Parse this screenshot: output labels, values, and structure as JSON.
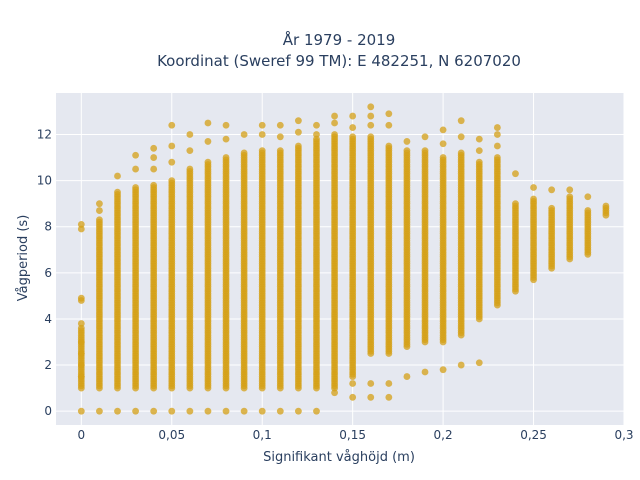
{
  "chart_data": {
    "type": "scatter",
    "title_line1": "År 1979 - 2019",
    "title_line2": "Koordinat (Sweref 99 TM): E 482251, N 6207020",
    "xlabel": "Signifikant våghöjd (m)",
    "ylabel": "Vågperiod (s)",
    "xlim": [
      -0.014,
      0.3
    ],
    "ylim": [
      -0.6,
      13.8
    ],
    "x_ticks": [
      0,
      0.05,
      0.1,
      0.15,
      0.2,
      0.25,
      0.3
    ],
    "x_tick_labels": [
      "0",
      "0,05",
      "0,1",
      "0,15",
      "0,2",
      "0,25",
      "0,3"
    ],
    "y_ticks": [
      0,
      2,
      4,
      6,
      8,
      10,
      12
    ],
    "y_tick_labels": [
      "0",
      "2",
      "4",
      "6",
      "8",
      "10",
      "12"
    ],
    "grid": true,
    "plot_bgcolor": "#e5e8f0",
    "marker_color": "#d4a017",
    "columns": [
      {
        "x": 0.0,
        "dense": [
          1.0,
          3.5
        ],
        "extra": [
          0,
          1.5,
          2.0,
          2.5,
          3.0,
          3.6,
          3.8,
          4.8,
          4.9,
          7.9,
          8.1
        ]
      },
      {
        "x": 0.01,
        "dense": [
          1.0,
          8.3
        ],
        "extra": [
          0,
          8.7,
          9.0
        ]
      },
      {
        "x": 0.02,
        "dense": [
          1.0,
          9.5
        ],
        "extra": [
          0,
          10.2
        ]
      },
      {
        "x": 0.03,
        "dense": [
          1.0,
          9.7
        ],
        "extra": [
          0,
          10.5,
          11.1
        ]
      },
      {
        "x": 0.04,
        "dense": [
          1.0,
          9.8
        ],
        "extra": [
          0,
          10.5,
          11.0,
          11.4
        ]
      },
      {
        "x": 0.05,
        "dense": [
          1.0,
          10.0
        ],
        "extra": [
          0,
          10.8,
          11.5,
          12.4
        ]
      },
      {
        "x": 0.06,
        "dense": [
          1.0,
          10.5
        ],
        "extra": [
          0,
          11.3,
          12.0
        ]
      },
      {
        "x": 0.07,
        "dense": [
          1.0,
          10.8
        ],
        "extra": [
          0,
          11.7,
          12.5
        ]
      },
      {
        "x": 0.08,
        "dense": [
          1.0,
          11.0
        ],
        "extra": [
          0,
          11.8,
          12.4
        ]
      },
      {
        "x": 0.09,
        "dense": [
          1.0,
          11.2
        ],
        "extra": [
          0,
          12.0
        ]
      },
      {
        "x": 0.1,
        "dense": [
          1.0,
          11.3
        ],
        "extra": [
          0,
          12.0,
          12.4
        ]
      },
      {
        "x": 0.11,
        "dense": [
          1.0,
          11.3
        ],
        "extra": [
          0,
          11.9,
          12.4
        ]
      },
      {
        "x": 0.12,
        "dense": [
          1.0,
          11.5
        ],
        "extra": [
          0,
          12.1,
          12.6
        ]
      },
      {
        "x": 0.13,
        "dense": [
          1.0,
          11.8
        ],
        "extra": [
          0,
          12.0,
          12.4
        ]
      },
      {
        "x": 0.14,
        "dense": [
          1.0,
          12.0
        ],
        "extra": [
          0.8,
          12.5,
          12.8
        ]
      },
      {
        "x": 0.15,
        "dense": [
          1.5,
          11.9
        ],
        "extra": [
          0.6,
          1.2,
          12.3,
          12.8
        ]
      },
      {
        "x": 0.16,
        "dense": [
          2.5,
          11.9
        ],
        "extra": [
          0.6,
          1.2,
          12.4,
          12.8,
          13.2
        ]
      },
      {
        "x": 0.17,
        "dense": [
          2.5,
          11.5
        ],
        "extra": [
          0.6,
          1.2,
          12.4,
          12.9
        ]
      },
      {
        "x": 0.18,
        "dense": [
          2.8,
          11.3
        ],
        "extra": [
          1.5,
          11.7
        ]
      },
      {
        "x": 0.19,
        "dense": [
          3.0,
          11.3
        ],
        "extra": [
          1.7,
          11.9
        ]
      },
      {
        "x": 0.2,
        "dense": [
          3.0,
          11.0
        ],
        "extra": [
          1.8,
          11.6,
          12.2
        ]
      },
      {
        "x": 0.21,
        "dense": [
          3.3,
          11.2
        ],
        "extra": [
          2.0,
          11.9,
          12.6
        ]
      },
      {
        "x": 0.22,
        "dense": [
          4.0,
          10.8
        ],
        "extra": [
          2.1,
          11.3,
          11.8
        ]
      },
      {
        "x": 0.23,
        "dense": [
          4.6,
          11.0
        ],
        "extra": [
          11.5,
          12.0,
          12.3
        ]
      },
      {
        "x": 0.24,
        "dense": [
          5.2,
          9.0
        ],
        "extra": [
          10.3
        ]
      },
      {
        "x": 0.25,
        "dense": [
          5.7,
          9.2
        ],
        "extra": [
          9.7
        ]
      },
      {
        "x": 0.26,
        "dense": [
          6.2,
          8.8
        ],
        "extra": [
          9.6
        ]
      },
      {
        "x": 0.27,
        "dense": [
          6.6,
          9.3
        ],
        "extra": [
          9.6
        ]
      },
      {
        "x": 0.28,
        "dense": [
          6.8,
          8.7
        ],
        "extra": [
          9.3
        ]
      },
      {
        "x": 0.29,
        "dense": [
          8.5,
          8.9
        ],
        "extra": []
      }
    ]
  }
}
